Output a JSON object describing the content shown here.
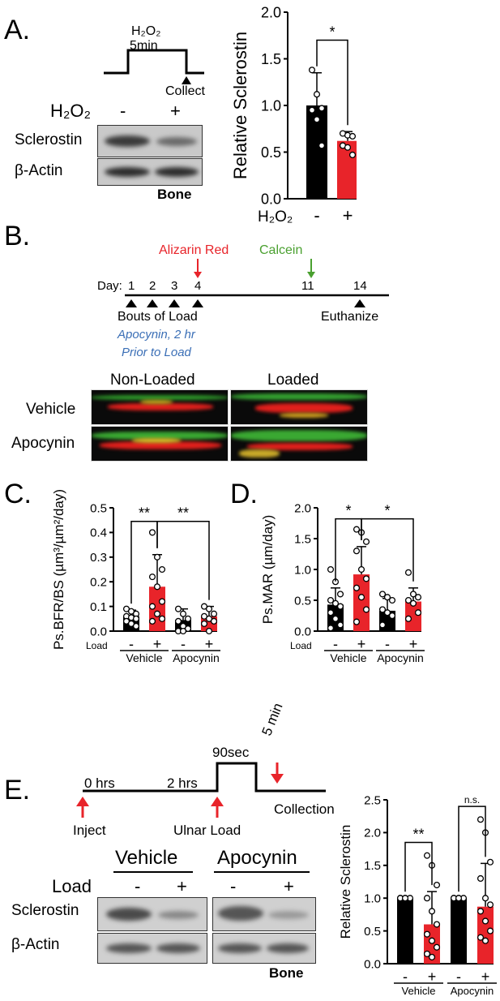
{
  "panels": {
    "a": "A.",
    "b": "B.",
    "c": "C.",
    "d": "D.",
    "e": "E."
  },
  "panelA": {
    "protocol_label": "H₂O₂",
    "protocol_time": "5min",
    "collect": "Collect",
    "h2o2_label": "H₂O₂",
    "minus": "-",
    "plus": "+",
    "row1": "Sclerostin",
    "row2": "β-Actin",
    "tissue": "Bone"
  },
  "panelB": {
    "alizarin": "Alizarin Red",
    "calcein": "Calcein",
    "day_label": "Day:",
    "days": [
      "1",
      "2",
      "3",
      "4",
      "11",
      "14"
    ],
    "bouts": "Bouts of Load",
    "apocynin_note_1": "Apocynin, 2 hr",
    "apocynin_note_2": "Prior to Load",
    "euthanize": "Euthanize",
    "col_nonloaded": "Non-Loaded",
    "col_loaded": "Loaded",
    "row_vehicle": "Vehicle",
    "row_apocynin": "Apocynin",
    "colors": {
      "alizarin": "#e8242a",
      "calcein": "#4aa030",
      "note": "#3b6fb6"
    }
  },
  "panelE": {
    "t0": "0 hrs",
    "t2": "2 hrs",
    "t90": "90sec",
    "t5": "5 min",
    "inject": "Inject",
    "ulnar": "Ulnar Load",
    "collection": "Collection",
    "vehicle": "Vehicle",
    "apocynin": "Apocynin",
    "load": "Load",
    "minus": "-",
    "plus": "+",
    "row1": "Sclerostin",
    "row2": "β-Actin",
    "tissue": "Bone"
  },
  "chart_data": [
    {
      "id": "A",
      "type": "bar",
      "ylabel": "Relative Sclerostin",
      "ylim": [
        0,
        2.0
      ],
      "yticks": [
        "0.0",
        "0.5",
        "1.0",
        "1.5",
        "2.0"
      ],
      "categories": [
        "-",
        "+"
      ],
      "xprefix": "H₂O₂",
      "values": [
        1.0,
        0.62
      ],
      "errors": [
        0.35,
        0.1
      ],
      "points": [
        [
          1.38,
          1.12,
          0.97,
          0.95,
          0.85,
          0.57
        ],
        [
          0.7,
          0.68,
          0.67,
          0.57,
          0.55,
          0.47
        ]
      ],
      "colors": [
        "#000000",
        "#e8242a"
      ],
      "significance": [
        {
          "from": 0,
          "to": 1,
          "label": "*"
        }
      ]
    },
    {
      "id": "C",
      "type": "bar",
      "ylabel": "Ps.BFR/BS (µm³/µm²/day)",
      "ylim": [
        0,
        0.5
      ],
      "yticks": [
        "0.0",
        "0.1",
        "0.2",
        "0.3",
        "0.4",
        "0.5"
      ],
      "xprefix": "Load",
      "categories": [
        "-",
        "+",
        "-",
        "+"
      ],
      "groups": [
        "Vehicle",
        "Apocynin"
      ],
      "values": [
        0.06,
        0.18,
        0.045,
        0.06
      ],
      "errors": [
        0.025,
        0.13,
        0.045,
        0.04
      ],
      "points": [
        [
          0.09,
          0.08,
          0.07,
          0.06,
          0.055,
          0.05,
          0.04,
          0.03,
          0.02
        ],
        [
          0.4,
          0.3,
          0.25,
          0.22,
          0.18,
          0.12,
          0.1,
          0.07,
          0.05,
          0.04
        ],
        [
          0.09,
          0.07,
          0.05,
          0.04,
          0.02,
          0.01,
          0.0,
          0.0
        ],
        [
          0.1,
          0.09,
          0.07,
          0.06,
          0.05,
          0.04,
          0.03,
          0.0
        ]
      ],
      "colors": [
        "#000000",
        "#e8242a",
        "#000000",
        "#e8242a"
      ],
      "significance": [
        {
          "from": 0,
          "to": 1,
          "label": "**"
        },
        {
          "from": 1,
          "to": 3,
          "label": "**"
        }
      ]
    },
    {
      "id": "D",
      "type": "bar",
      "ylabel": "Ps.MAR (µm/day)",
      "ylim": [
        0,
        2.0
      ],
      "yticks": [
        "0.0",
        "0.5",
        "1.0",
        "1.5",
        "2.0"
      ],
      "xprefix": "Load",
      "categories": [
        "-",
        "+",
        "-",
        "+"
      ],
      "groups": [
        "Vehicle",
        "Apocynin"
      ],
      "values": [
        0.43,
        0.92,
        0.33,
        0.48
      ],
      "errors": [
        0.27,
        0.45,
        0.2,
        0.22
      ],
      "points": [
        [
          1.0,
          0.8,
          0.6,
          0.5,
          0.45,
          0.4,
          0.3,
          0.2,
          0.1,
          0.05
        ],
        [
          1.65,
          1.6,
          1.45,
          1.3,
          1.0,
          0.85,
          0.7,
          0.55,
          0.35,
          0.15
        ],
        [
          0.6,
          0.55,
          0.5,
          0.35,
          0.3,
          0.25,
          0.1
        ],
        [
          0.95,
          0.6,
          0.55,
          0.5,
          0.45,
          0.3,
          0.2
        ]
      ],
      "colors": [
        "#000000",
        "#e8242a",
        "#000000",
        "#e8242a"
      ],
      "significance": [
        {
          "from": 0,
          "to": 1,
          "label": "*"
        },
        {
          "from": 1,
          "to": 3,
          "label": "*"
        }
      ]
    },
    {
      "id": "E",
      "type": "bar",
      "ylabel": "Relative Sclerostin",
      "ylim": [
        0,
        2.5
      ],
      "yticks": [
        "0.0",
        "0.5",
        "1.0",
        "1.5",
        "2.0",
        "2.5"
      ],
      "categories": [
        "-",
        "+",
        "-",
        "+"
      ],
      "groups": [
        "Vehicle",
        "Apocynin"
      ],
      "values": [
        1.0,
        0.6,
        1.0,
        0.87
      ],
      "errors": [
        0.0,
        0.5,
        0.0,
        0.66
      ],
      "points": [
        [
          1.0,
          1.0,
          1.0,
          1.0,
          1.0
        ],
        [
          1.65,
          1.5,
          1.2,
          1.0,
          0.8,
          0.6,
          0.45,
          0.35,
          0.25,
          0.15,
          0.1
        ],
        [
          1.0,
          1.0,
          1.0,
          1.0,
          1.0
        ],
        [
          2.2,
          2.0,
          1.55,
          1.3,
          1.0,
          0.9,
          0.8,
          0.65,
          0.5,
          0.4,
          0.35
        ]
      ],
      "colors": [
        "#000000",
        "#e8242a",
        "#000000",
        "#e8242a"
      ],
      "significance": [
        {
          "from": 0,
          "to": 1,
          "label": "**"
        },
        {
          "from": 2,
          "to": 3,
          "label": "n.s."
        }
      ]
    }
  ]
}
